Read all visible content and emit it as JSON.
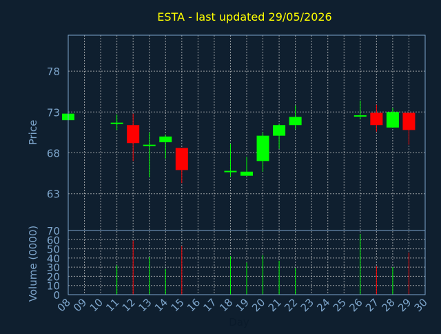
{
  "chart_data": {
    "type": "candlestick",
    "title": "ESTA - last updated 29/05/2026",
    "xlabel": "Day",
    "price_panel": {
      "ylabel": "Price",
      "yticks": [
        63,
        68,
        73,
        78
      ],
      "ylim": [
        58.5,
        82.4
      ]
    },
    "volume_panel": {
      "ylabel": "Volume (0000)",
      "yticks": [
        0,
        10,
        20,
        30,
        40,
        50,
        60,
        70
      ],
      "ylim": [
        0,
        70
      ]
    },
    "x_ticks": [
      "08",
      "09",
      "10",
      "11",
      "12",
      "13",
      "14",
      "15",
      "16",
      "17",
      "18",
      "19",
      "20",
      "21",
      "22",
      "23",
      "24",
      "25",
      "26",
      "27",
      "28",
      "29",
      "30"
    ],
    "candles": [
      {
        "day": 8,
        "open": 72.0,
        "high": 72.8,
        "low": 72.0,
        "close": 72.8,
        "volume": 0
      },
      {
        "day": 11,
        "open": 71.7,
        "high": 72.7,
        "low": 70.8,
        "close": 71.7,
        "volume": 32
      },
      {
        "day": 12,
        "open": 71.4,
        "high": 72.8,
        "low": 67.0,
        "close": 69.2,
        "volume": 59
      },
      {
        "day": 13,
        "open": 69.0,
        "high": 70.5,
        "low": 65.0,
        "close": 69.0,
        "volume": 41
      },
      {
        "day": 14,
        "open": 69.3,
        "high": 70.2,
        "low": 67.3,
        "close": 70.0,
        "volume": 28
      },
      {
        "day": 15,
        "open": 68.6,
        "high": 68.6,
        "low": 64.3,
        "close": 65.9,
        "volume": 53
      },
      {
        "day": 18,
        "open": 65.8,
        "high": 69.1,
        "low": 65.1,
        "close": 65.8,
        "volume": 42
      },
      {
        "day": 19,
        "open": 65.2,
        "high": 67.5,
        "low": 65.2,
        "close": 65.7,
        "volume": 35
      },
      {
        "day": 20,
        "open": 67.0,
        "high": 70.5,
        "low": 65.7,
        "close": 70.1,
        "volume": 43
      },
      {
        "day": 21,
        "open": 70.1,
        "high": 71.5,
        "low": 68.5,
        "close": 71.4,
        "volume": 37
      },
      {
        "day": 22,
        "open": 71.4,
        "high": 73.8,
        "low": 70.9,
        "close": 72.4,
        "volume": 29
      },
      {
        "day": 26,
        "open": 72.6,
        "high": 74.4,
        "low": 72.1,
        "close": 72.6,
        "volume": 66
      },
      {
        "day": 27,
        "open": 72.9,
        "high": 73.9,
        "low": 70.6,
        "close": 71.4,
        "volume": 31
      },
      {
        "day": 28,
        "open": 71.1,
        "high": 73.5,
        "low": 71.1,
        "close": 73.0,
        "volume": 30
      },
      {
        "day": 29,
        "open": 72.9,
        "high": 72.9,
        "low": 69.0,
        "close": 70.8,
        "volume": 46
      }
    ],
    "colors": {
      "background": "#0f1f2f",
      "up": "#00ff00",
      "down": "#ff0000",
      "title": "#ffff00",
      "axis_text": "#7ea6cc",
      "grid": "#c8c8c8",
      "border": "#7ea6cc"
    },
    "grid": true
  }
}
